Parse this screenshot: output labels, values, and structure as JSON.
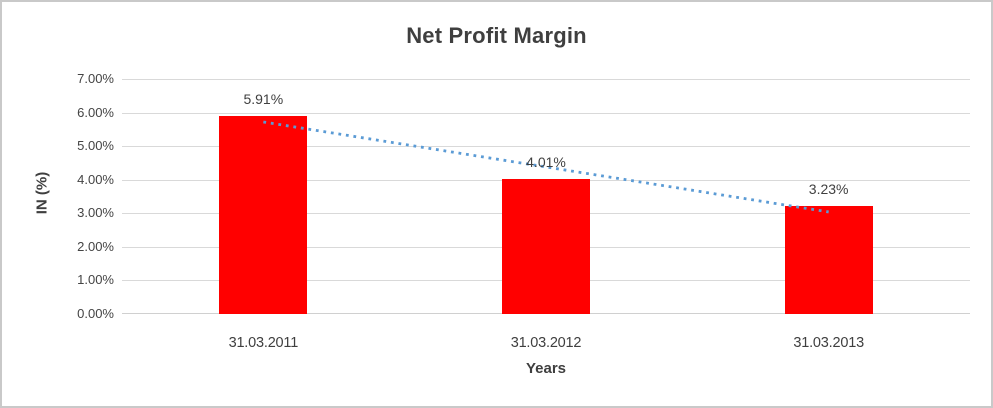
{
  "chart_data": {
    "type": "bar",
    "title": "Net Profit Margin",
    "categories": [
      "31.03.2011",
      "31.03.2012",
      "31.03.2013"
    ],
    "values": [
      5.91,
      4.01,
      3.23
    ],
    "data_labels": [
      "5.91%",
      "4.01%",
      "3.23%"
    ],
    "xlabel": "Years",
    "ylabel": "IN (%)",
    "ylim": [
      0,
      7
    ],
    "ytick_step": 1,
    "ytick_labels": [
      "7.00%",
      "6.00%",
      "5.00%",
      "4.00%",
      "3.00%",
      "2.00%",
      "1.00%",
      "0.00%"
    ],
    "grid": true,
    "legend": "none",
    "trendline": {
      "type": "linear",
      "style": "dotted",
      "endpoints_pct": [
        5.72,
        3.04
      ]
    },
    "colors": {
      "bar": "#ff0000",
      "trendline": "#5b9bd5",
      "gridline": "#d9d9d9",
      "axis_line": "#d0d0d0",
      "text": "#3f3f3f",
      "frame_border": "#c9c9c9"
    }
  }
}
